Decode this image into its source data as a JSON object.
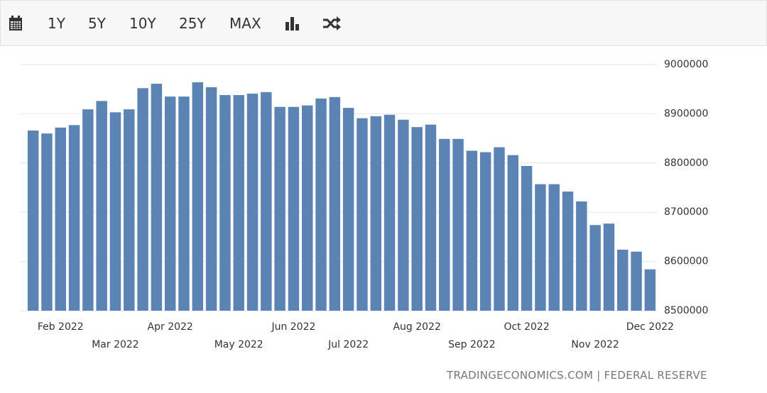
{
  "toolbar": [
    "1Y",
    "5Y",
    "10Y",
    "25Y",
    "MAX"
  ],
  "chart_data": {
    "type": "bar",
    "categories": [
      null,
      null,
      "Feb 2022",
      null,
      null,
      null,
      "Mar 2022",
      null,
      null,
      null,
      "Apr 2022",
      null,
      null,
      null,
      null,
      "May 2022",
      null,
      null,
      null,
      "Jun 2022",
      null,
      null,
      null,
      "Jul 2022",
      null,
      null,
      null,
      null,
      "Aug 2022",
      null,
      null,
      null,
      "Sep 2022",
      null,
      null,
      null,
      "Oct 2022",
      null,
      null,
      null,
      null,
      "Nov 2022",
      null,
      null,
      null,
      "Dec 2022"
    ],
    "values": [
      8866000,
      8860000,
      8872000,
      8877000,
      8909000,
      8926000,
      8903000,
      8909000,
      8952000,
      8961000,
      8935000,
      8935000,
      8964000,
      8954000,
      8938000,
      8938000,
      8941000,
      8944000,
      8914000,
      8914000,
      8917000,
      8931000,
      8934000,
      8912000,
      8891000,
      8895000,
      8898000,
      8888000,
      8873000,
      8878000,
      8849000,
      8849000,
      8825000,
      8822000,
      8832000,
      8816000,
      8794000,
      8757000,
      8757000,
      8742000,
      8722000,
      8674000,
      8677000,
      8624000,
      8620000,
      8584000
    ],
    "color": "#5b84b5",
    "ylim": [
      8500000,
      9000000
    ],
    "yticks": [
      8500000,
      8600000,
      8700000,
      8800000,
      8900000,
      9000000
    ],
    "grid": true,
    "source": "TRADINGECONOMICS.COM | FEDERAL RESERVE"
  }
}
